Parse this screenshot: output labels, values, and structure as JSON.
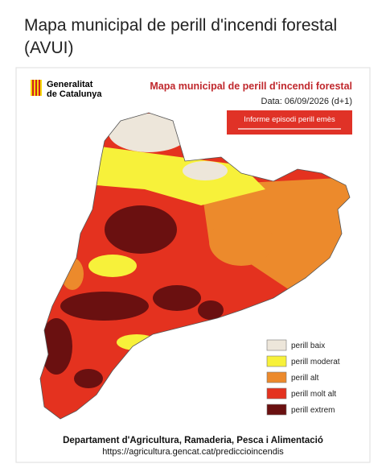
{
  "header": {
    "title": "Mapa municipal de perill d'incendi forestal (AVUI)"
  },
  "map": {
    "logo": {
      "line1": "Generalitat",
      "line2": "de Catalunya"
    },
    "title": "Mapa municipal de perill d'incendi forestal",
    "date": "Data: 06/09/2026 (d+1)",
    "notice": "Informe episodi perill emès",
    "legend": [
      {
        "label": "perill baix",
        "color": "#ede6da"
      },
      {
        "label": "perill moderat",
        "color": "#f7f13a"
      },
      {
        "label": "perill alt",
        "color": "#ec8a2c"
      },
      {
        "label": "perill molt alt",
        "color": "#e4321f"
      },
      {
        "label": "perill extrem",
        "color": "#6a1010"
      }
    ],
    "footer": {
      "department": "Departament d'Agricultura, Ramaderia, Pesca i Alimentació",
      "url": "https://agricultura.gencat.cat/prediccioincendis"
    }
  }
}
